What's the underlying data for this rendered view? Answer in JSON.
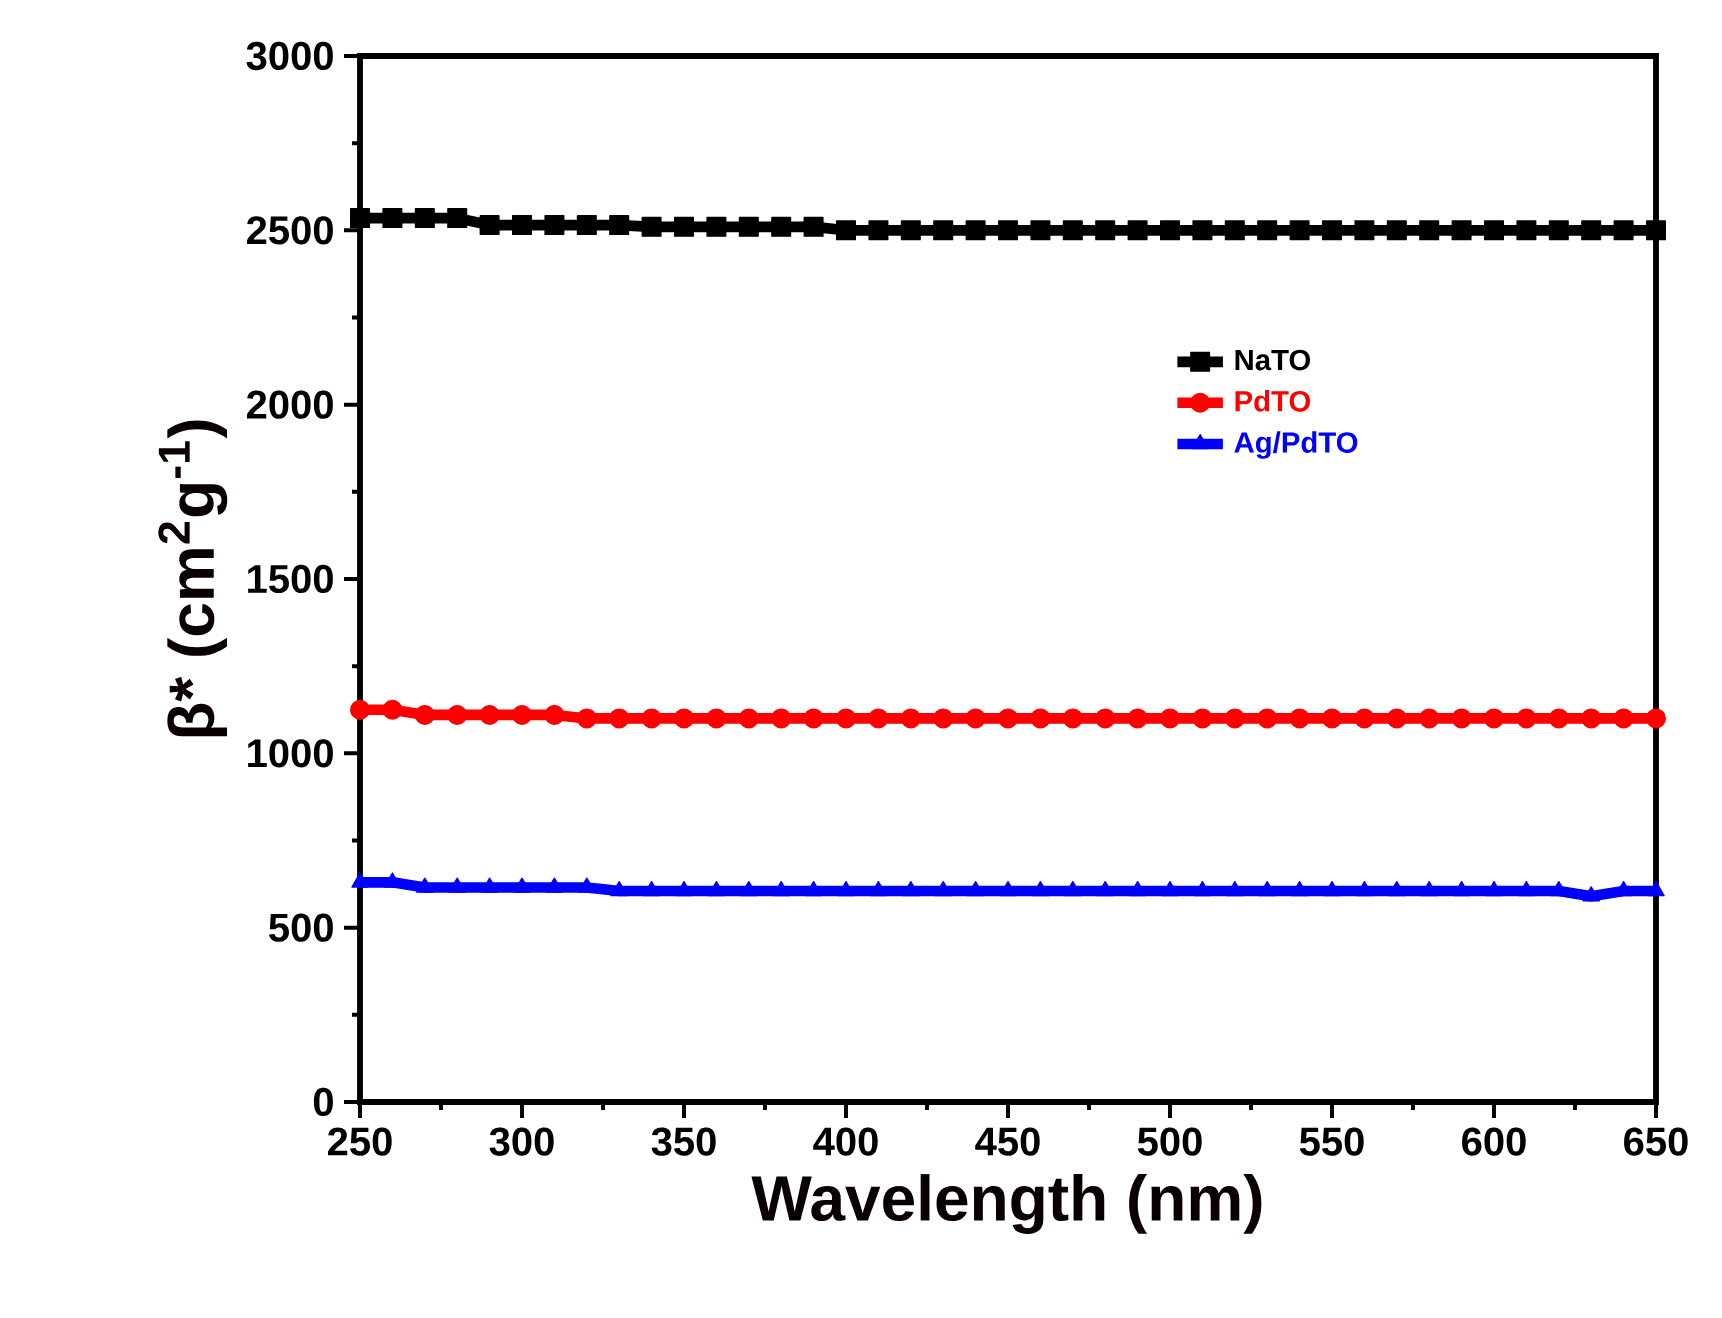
{
  "chart_data": {
    "type": "line",
    "xlabel": "Wavelength (nm)",
    "ylabel": "β* (cm$^{2}$g$^{-1}$)",
    "x": [
      250,
      260,
      270,
      280,
      290,
      300,
      310,
      320,
      330,
      340,
      350,
      360,
      370,
      380,
      390,
      400,
      410,
      420,
      430,
      440,
      450,
      460,
      470,
      480,
      490,
      500,
      510,
      520,
      530,
      540,
      550,
      560,
      570,
      580,
      590,
      600,
      610,
      620,
      630,
      640,
      650
    ],
    "series": [
      {
        "name": "NaTO",
        "color": "#000000",
        "marker": "square",
        "values": [
          2535,
          2535,
          2535,
          2535,
          2515,
          2515,
          2515,
          2515,
          2515,
          2510,
          2510,
          2510,
          2510,
          2510,
          2510,
          2500,
          2500,
          2500,
          2500,
          2500,
          2500,
          2500,
          2500,
          2500,
          2500,
          2500,
          2500,
          2500,
          2500,
          2500,
          2500,
          2500,
          2500,
          2500,
          2500,
          2500,
          2500,
          2500,
          2500,
          2500,
          2500
        ]
      },
      {
        "name": "PdTO",
        "color": "#ff0000",
        "marker": "circle",
        "values": [
          1125,
          1125,
          1110,
          1110,
          1110,
          1110,
          1110,
          1100,
          1100,
          1100,
          1100,
          1100,
          1100,
          1100,
          1100,
          1100,
          1100,
          1100,
          1100,
          1100,
          1100,
          1100,
          1100,
          1100,
          1100,
          1100,
          1100,
          1100,
          1100,
          1100,
          1100,
          1100,
          1100,
          1100,
          1100,
          1100,
          1100,
          1100,
          1100,
          1100,
          1100
        ]
      },
      {
        "name": "Ag/PdTO",
        "color": "#0000ff",
        "marker": "triangle",
        "values": [
          630,
          630,
          615,
          615,
          615,
          615,
          615,
          615,
          605,
          605,
          605,
          605,
          605,
          605,
          605,
          605,
          605,
          605,
          605,
          605,
          605,
          605,
          605,
          605,
          605,
          605,
          605,
          605,
          605,
          605,
          605,
          605,
          605,
          605,
          605,
          605,
          605,
          605,
          590,
          605,
          605
        ]
      }
    ],
    "xlim": [
      250,
      650
    ],
    "xticks": [
      250,
      300,
      350,
      400,
      450,
      500,
      550,
      600,
      650
    ],
    "ylim": [
      0,
      3000
    ],
    "yticks": [
      0,
      500,
      1000,
      1500,
      2000,
      2500,
      3000
    ],
    "legend": "top right",
    "grid": false
  }
}
